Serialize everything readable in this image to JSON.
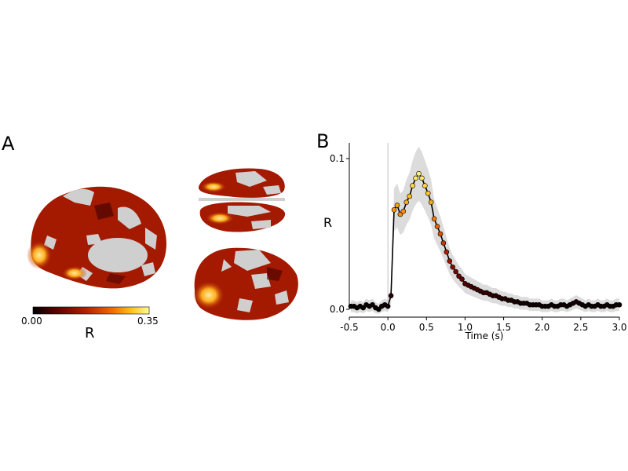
{
  "panels": {
    "a_label": "A",
    "b_label": "B"
  },
  "colorbar": {
    "min_label": "0.00",
    "max_label": "0.35",
    "label": "R",
    "colormap": [
      "#000000",
      "#5a0000",
      "#b21e00",
      "#f26a00",
      "#ffc21a",
      "#ffff9a"
    ],
    "min": 0.0,
    "max": 0.35
  },
  "colors": {
    "surface_gray": "#cfcfcf",
    "ci_band": "#dcdcdc",
    "line": "#000000"
  },
  "chart_data": {
    "type": "line",
    "xlabel": "Time (s)",
    "ylabel": "R",
    "xlim": [
      -0.5,
      3.0
    ],
    "ylim": [
      0.0,
      0.1
    ],
    "xticks": [
      "-0.5",
      "0.0",
      "0.5",
      "1.0",
      "1.5",
      "2.0",
      "2.5",
      "3.0"
    ],
    "yticks": [
      "0.0",
      "0.1"
    ],
    "onset_line_x": 0.0,
    "grid": false,
    "series": [
      {
        "x": [
          -0.48,
          -0.44,
          -0.4,
          -0.36,
          -0.32,
          -0.28,
          -0.24,
          -0.2,
          -0.16,
          -0.12,
          -0.08,
          -0.04,
          0.0,
          0.04,
          0.08,
          0.12,
          0.16,
          0.2,
          0.24,
          0.28,
          0.32,
          0.36,
          0.4,
          0.44,
          0.48,
          0.52,
          0.56,
          0.6,
          0.64,
          0.68,
          0.72,
          0.76,
          0.8,
          0.84,
          0.88,
          0.92,
          0.96,
          1.0,
          1.04,
          1.08,
          1.12,
          1.16,
          1.2,
          1.24,
          1.28,
          1.32,
          1.36,
          1.4,
          1.44,
          1.48,
          1.52,
          1.56,
          1.6,
          1.64,
          1.68,
          1.72,
          1.76,
          1.8,
          1.84,
          1.88,
          1.92,
          1.96,
          2.0,
          2.04,
          2.08,
          2.12,
          2.16,
          2.2,
          2.24,
          2.28,
          2.32,
          2.36,
          2.4,
          2.44,
          2.48,
          2.52,
          2.56,
          2.6,
          2.64,
          2.68,
          2.72,
          2.76,
          2.8,
          2.84,
          2.88,
          2.92,
          2.96,
          3.0
        ],
        "y": [
          0.002,
          0.002,
          0.001,
          0.002,
          0.001,
          0.003,
          0.002,
          0.003,
          0.001,
          0.0,
          0.002,
          0.003,
          0.002,
          0.009,
          0.066,
          0.069,
          0.063,
          0.065,
          0.071,
          0.075,
          0.082,
          0.087,
          0.09,
          0.087,
          0.082,
          0.077,
          0.071,
          0.06,
          0.055,
          0.05,
          0.044,
          0.038,
          0.032,
          0.028,
          0.025,
          0.022,
          0.02,
          0.017,
          0.016,
          0.015,
          0.014,
          0.013,
          0.012,
          0.011,
          0.011,
          0.01,
          0.009,
          0.009,
          0.008,
          0.007,
          0.007,
          0.006,
          0.006,
          0.005,
          0.005,
          0.004,
          0.004,
          0.004,
          0.003,
          0.003,
          0.003,
          0.003,
          0.002,
          0.002,
          0.002,
          0.003,
          0.002,
          0.002,
          0.003,
          0.003,
          0.002,
          0.003,
          0.004,
          0.005,
          0.004,
          0.003,
          0.002,
          0.003,
          0.002,
          0.002,
          0.003,
          0.002,
          0.002,
          0.003,
          0.002,
          0.002,
          0.003,
          0.003
        ],
        "ci_halfwidth": 0.006
      }
    ]
  }
}
